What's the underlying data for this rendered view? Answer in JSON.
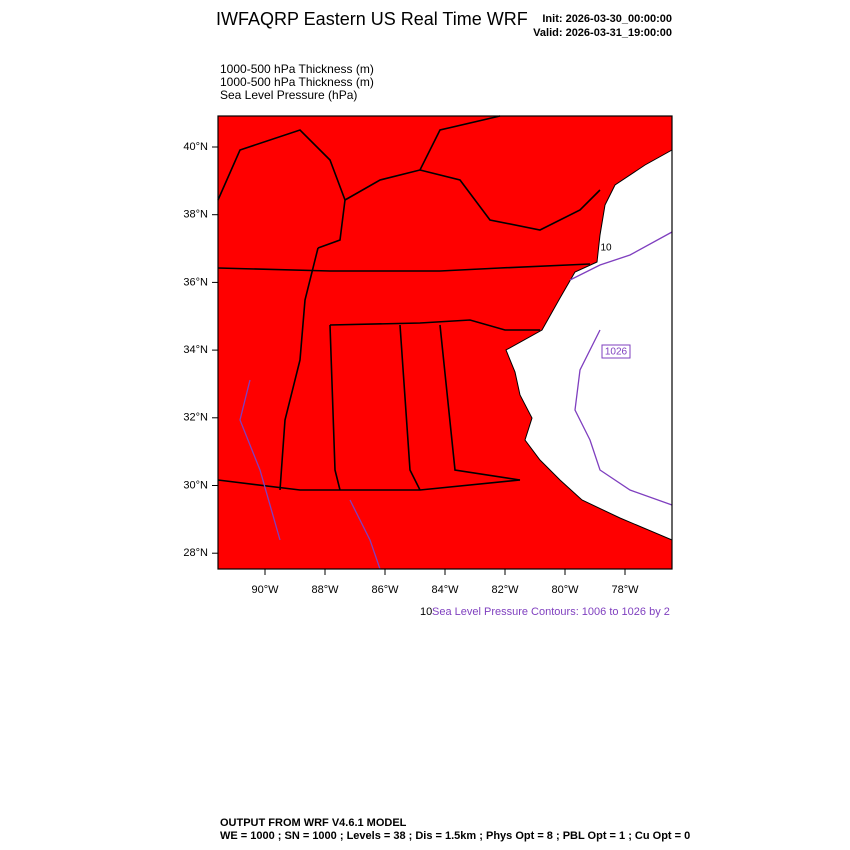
{
  "header": {
    "title": "IWFAQRP Eastern US Real Time WRF",
    "init": "Init: 2026-03-30_00:00:00",
    "valid": "Valid: 2026-03-31_19:00:00"
  },
  "fields": [
    "1000-500 hPa Thickness   (m)",
    "1000-500 hPa Thickness   (m)",
    "Sea Level Pressure   (hPa)"
  ],
  "map": {
    "lat_labels": [
      "40°N",
      "38°N",
      "36°N",
      "34°N",
      "32°N",
      "30°N",
      "28°N"
    ],
    "lon_labels": [
      "90°W",
      "88°W",
      "86°W",
      "84°W",
      "82°W",
      "80°W",
      "78°W"
    ],
    "contour_labels": [
      "1026",
      "10"
    ]
  },
  "legend": {
    "lead": "10",
    "text": "Sea Level Pressure Contours: 1006 to 1026 by 2"
  },
  "footer": {
    "line1": "OUTPUT FROM WRF V4.6.1 MODEL",
    "line2": "WE = 1000 ; SN = 1000 ; Levels = 38 ; Dis = 1.5km ; Phys Opt = 8 ; PBL Opt = 1 ; Cu Opt = 0"
  }
}
